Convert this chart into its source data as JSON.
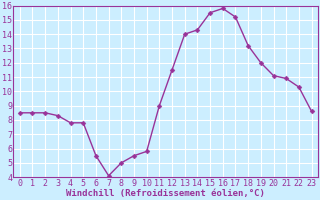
{
  "hours": [
    0,
    1,
    2,
    3,
    4,
    5,
    6,
    7,
    8,
    9,
    10,
    11,
    12,
    13,
    14,
    15,
    16,
    17,
    18,
    19,
    20,
    21,
    22,
    23
  ],
  "values": [
    8.5,
    8.5,
    8.5,
    8.3,
    7.8,
    7.8,
    5.5,
    4.1,
    5.0,
    5.5,
    5.8,
    9.0,
    11.5,
    14.0,
    14.3,
    15.5,
    15.8,
    15.2,
    13.2,
    12.0,
    11.1,
    10.9,
    10.3,
    8.6
  ],
  "xlabel": "Windchill (Refroidissement éolien,°C)",
  "xlim_min": -0.5,
  "xlim_max": 23.5,
  "ylim_min": 4,
  "ylim_max": 16,
  "yticks": [
    4,
    5,
    6,
    7,
    8,
    9,
    10,
    11,
    12,
    13,
    14,
    15,
    16
  ],
  "xticks": [
    0,
    1,
    2,
    3,
    4,
    5,
    6,
    7,
    8,
    9,
    10,
    11,
    12,
    13,
    14,
    15,
    16,
    17,
    18,
    19,
    20,
    21,
    22,
    23
  ],
  "line_color": "#993399",
  "marker": "D",
  "marker_size": 2.5,
  "bg_color": "#cceeff",
  "grid_color": "#ffffff",
  "axis_label_color": "#993399",
  "tick_label_color": "#993399",
  "xlabel_fontsize": 6.5,
  "tick_fontsize": 6.0,
  "spine_color": "#993399"
}
